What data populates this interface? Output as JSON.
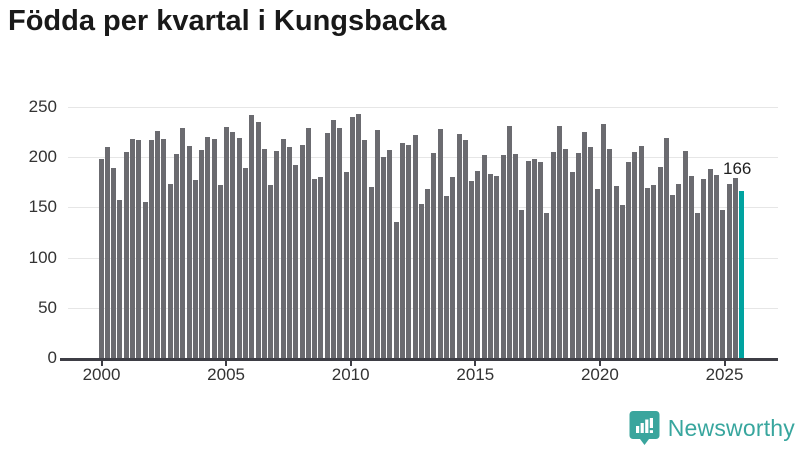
{
  "title": "Födda per kvartal i Kungsbacka",
  "annotation": {
    "label": "166",
    "applies_to": "2025-Q3"
  },
  "branding": {
    "name": "Newsworthy",
    "icon": "newsworthy-speech-bubble-chart-icon"
  },
  "colors": {
    "bar": "#6b6b70",
    "highlight": "#00a3a0",
    "grid": "#e6e6e6",
    "axis": "#3e3e45",
    "tick_text": "#333333",
    "title_text": "#191919",
    "annotation_text": "#1f1f1f",
    "brand": "#38a69e",
    "background": "#ffffff"
  },
  "chart_data": {
    "type": "bar",
    "title": "Födda per kvartal i Kungsbacka",
    "xlabel": "",
    "ylabel": "",
    "ylim": [
      0,
      250
    ],
    "y_ticks": [
      0,
      50,
      100,
      150,
      200,
      250
    ],
    "x_tick_labels": [
      "2000",
      "2005",
      "2010",
      "2015",
      "2020",
      "2025"
    ],
    "grid": true,
    "legend": "none",
    "frequency": "quarterly",
    "start_quarter": "2000-Q1",
    "end_quarter": "2025-Q3",
    "highlight_last_bar": true,
    "last_bar_label": "166",
    "series": [
      {
        "name": "Födda",
        "values": [
          198,
          210,
          189,
          157,
          205,
          218,
          217,
          155,
          217,
          226,
          218,
          173,
          203,
          229,
          211,
          177,
          207,
          220,
          218,
          172,
          230,
          225,
          219,
          189,
          242,
          235,
          208,
          172,
          206,
          218,
          210,
          192,
          212,
          229,
          178,
          180,
          224,
          237,
          229,
          185,
          240,
          243,
          217,
          170,
          227,
          200,
          207,
          135,
          214,
          212,
          222,
          153,
          168,
          204,
          228,
          161,
          180,
          223,
          217,
          176,
          186,
          202,
          183,
          181,
          202,
          231,
          203,
          147,
          196,
          198,
          195,
          144,
          205,
          231,
          208,
          185,
          204,
          225,
          210,
          168,
          233,
          208,
          171,
          152,
          195,
          205,
          211,
          169,
          172,
          190,
          219,
          162,
          173,
          206,
          181,
          144,
          178,
          188,
          182,
          147,
          173,
          179,
          166
        ]
      }
    ]
  }
}
